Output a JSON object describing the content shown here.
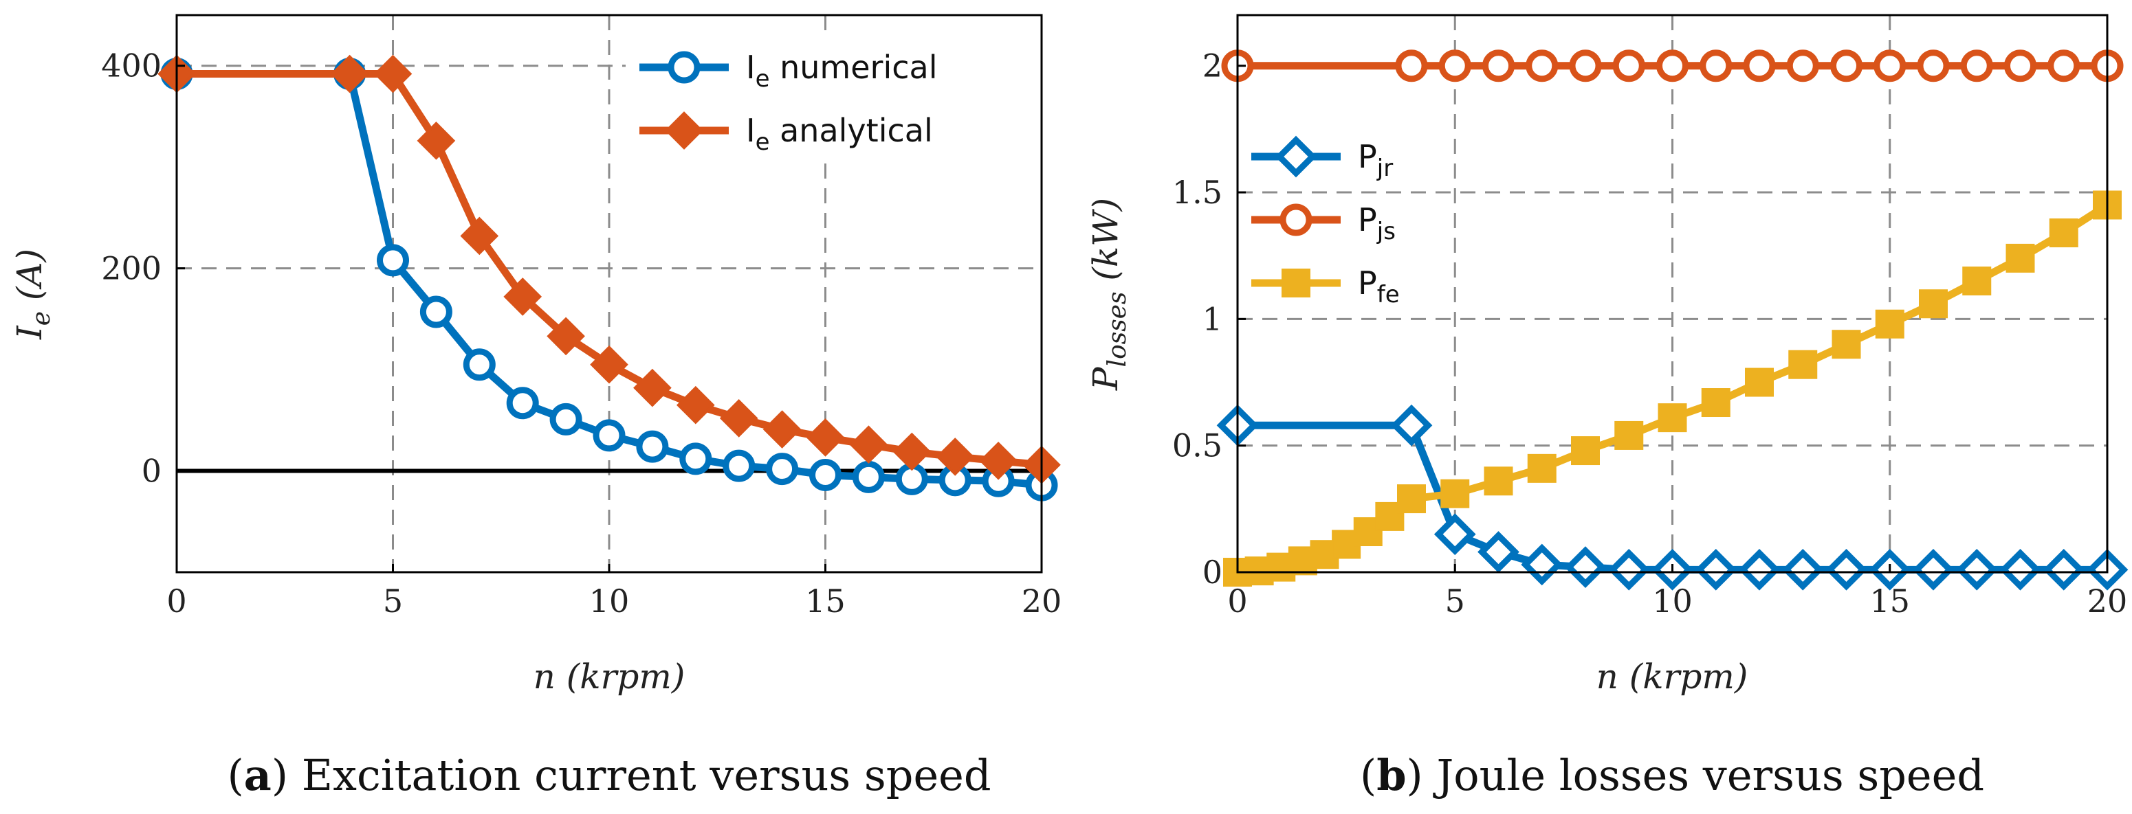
{
  "colors": {
    "blue": "#0072BD",
    "orange": "#D95319",
    "yellow": "#EDB120",
    "grid": "#8c8c8c",
    "zero": "#000000"
  },
  "chart_data": [
    {
      "id": "a",
      "type": "line",
      "caption_label": "a",
      "caption_text": "Excitation current versus speed",
      "xlabel": "n (krpm)",
      "ylabel": "Ie (A)",
      "xlim": [
        0,
        20
      ],
      "ylim": [
        -100,
        450
      ],
      "xticks": [
        0,
        5,
        10,
        15,
        20
      ],
      "yticks": [
        0,
        200,
        400
      ],
      "grid": true,
      "legend_position": "top-right",
      "zero_line": true,
      "series": [
        {
          "name": "Ie numerical",
          "legend_main": "I",
          "legend_sub": "e",
          "legend_rest": " numerical",
          "color": "#0072BD",
          "marker": "circle",
          "x": [
            0,
            4,
            5,
            6,
            7,
            8,
            9,
            10,
            11,
            12,
            13,
            14,
            15,
            16,
            17,
            18,
            19,
            20
          ],
          "y": [
            392,
            392,
            208,
            157,
            105,
            67,
            51,
            35,
            24,
            12,
            5,
            2,
            -4,
            -6,
            -8,
            -9,
            -10,
            -14
          ]
        },
        {
          "name": "Ie analytical",
          "legend_main": "I",
          "legend_sub": "e",
          "legend_rest": " analytical",
          "color": "#D95319",
          "marker": "diamond",
          "x": [
            0,
            4,
            5,
            6,
            7,
            8,
            9,
            10,
            11,
            12,
            13,
            14,
            15,
            16,
            17,
            18,
            19,
            20
          ],
          "y": [
            392,
            392,
            392,
            326,
            232,
            172,
            133,
            105,
            82,
            65,
            52,
            41,
            33,
            26,
            19,
            14,
            10,
            6
          ]
        }
      ]
    },
    {
      "id": "b",
      "type": "line",
      "caption_label": "b",
      "caption_text": "Joule losses versus speed",
      "xlabel": "n (krpm)",
      "ylabel": "Plosses (kW)",
      "xlim": [
        0,
        20
      ],
      "ylim": [
        0,
        2.2
      ],
      "xticks": [
        0,
        5,
        10,
        15,
        20
      ],
      "yticks": [
        0,
        0.5,
        1,
        1.5,
        2
      ],
      "grid": true,
      "legend_position": "upper-left",
      "series": [
        {
          "name": "Pjr",
          "legend_main": "P",
          "legend_sub": "jr",
          "legend_rest": "",
          "color": "#0072BD",
          "marker": "diamond",
          "x": [
            0,
            4,
            5,
            6,
            7,
            8,
            9,
            10,
            11,
            12,
            13,
            14,
            15,
            16,
            17,
            18,
            19,
            20
          ],
          "y": [
            0.58,
            0.58,
            0.15,
            0.08,
            0.03,
            0.02,
            0.01,
            0.01,
            0.01,
            0.01,
            0.01,
            0.01,
            0.01,
            0.01,
            0.01,
            0.01,
            0.01,
            0.01
          ]
        },
        {
          "name": "Pjs",
          "legend_main": "P",
          "legend_sub": "js",
          "legend_rest": "",
          "color": "#D95319",
          "marker": "circle",
          "x": [
            0,
            4,
            5,
            6,
            7,
            8,
            9,
            10,
            11,
            12,
            13,
            14,
            15,
            16,
            17,
            18,
            19,
            20
          ],
          "y": [
            2,
            2,
            2,
            2,
            2,
            2,
            2,
            2,
            2,
            2,
            2,
            2,
            2,
            2,
            2,
            2,
            2,
            2
          ]
        },
        {
          "name": "Pfe",
          "legend_main": "P",
          "legend_sub": "fe",
          "legend_rest": "",
          "color": "#EDB120",
          "marker": "square",
          "x": [
            0,
            0.5,
            1,
            1.5,
            2,
            2.5,
            3,
            3.5,
            4,
            5,
            6,
            7,
            8,
            9,
            10,
            11,
            12,
            13,
            14,
            15,
            16,
            17,
            18,
            19,
            20
          ],
          "y": [
            0,
            0.005,
            0.02,
            0.045,
            0.07,
            0.11,
            0.16,
            0.22,
            0.29,
            0.31,
            0.36,
            0.41,
            0.48,
            0.54,
            0.61,
            0.67,
            0.75,
            0.82,
            0.9,
            0.98,
            1.06,
            1.15,
            1.24,
            1.34,
            1.45
          ]
        }
      ]
    }
  ]
}
